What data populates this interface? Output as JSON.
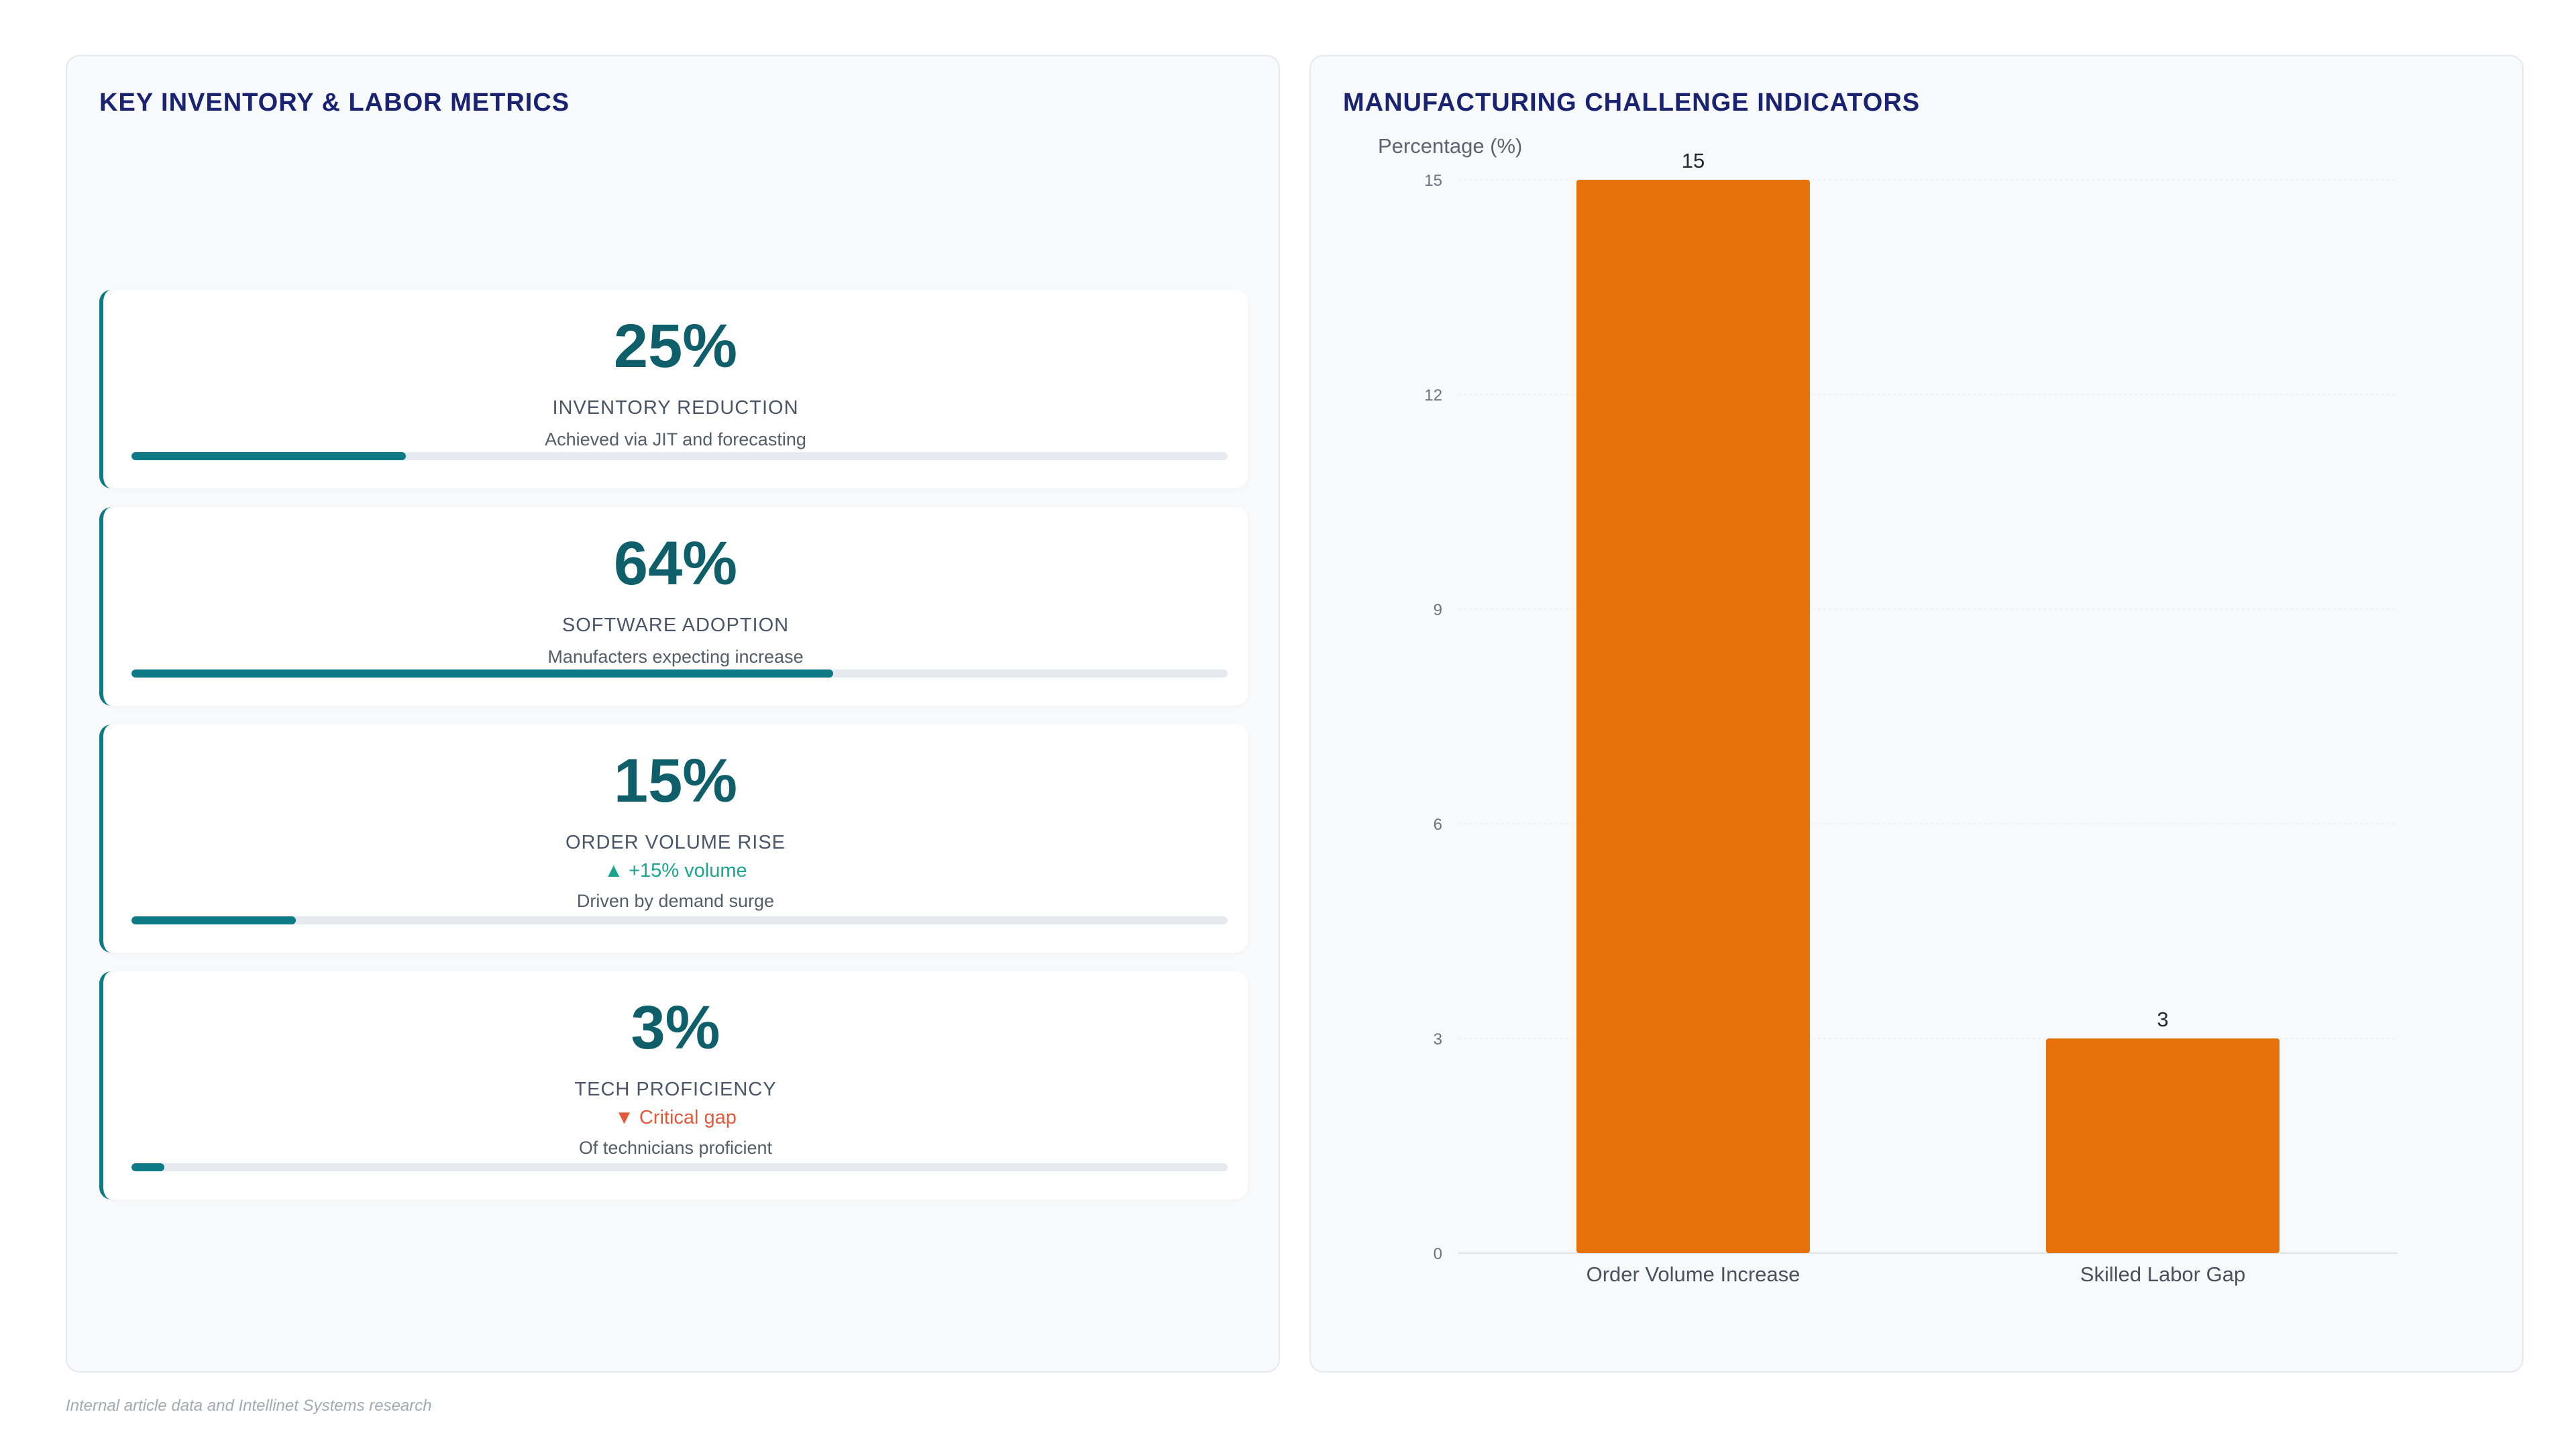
{
  "left_panel": {
    "title": "KEY INVENTORY & LABOR METRICS",
    "cards": [
      {
        "value": "25%",
        "label": "INVENTORY REDUCTION",
        "trend": "",
        "trend_dir": "",
        "description": "Achieved via JIT and forecasting",
        "progress_pct": 25
      },
      {
        "value": "64%",
        "label": "SOFTWARE ADOPTION",
        "trend": "",
        "trend_dir": "",
        "description": "Manufacters expecting increase",
        "progress_pct": 64
      },
      {
        "value": "15%",
        "label": "ORDER VOLUME RISE",
        "trend": "▲ +15% volume",
        "trend_dir": "up",
        "description": "Driven by demand surge",
        "progress_pct": 15
      },
      {
        "value": "3%",
        "label": "TECH PROFICIENCY",
        "trend": "▼ Critical gap",
        "trend_dir": "down",
        "description": "Of technicians proficient",
        "progress_pct": 3
      }
    ]
  },
  "right_panel": {
    "title": "MANUFACTURING CHALLENGE INDICATORS"
  },
  "chart_data": {
    "type": "bar",
    "categories": [
      "Order Volume Increase",
      "Skilled Labor Gap"
    ],
    "values": [
      15,
      3
    ],
    "data_labels": [
      "15",
      "3"
    ],
    "ylabel": "Percentage (%)",
    "ylim": [
      0,
      15
    ],
    "yticks": [
      "0",
      "3",
      "6",
      "9",
      "12",
      "15"
    ],
    "grid": true,
    "bar_color": "#e8720a"
  },
  "footer": {
    "source": "Internal article data and Intellinet Systems research"
  }
}
